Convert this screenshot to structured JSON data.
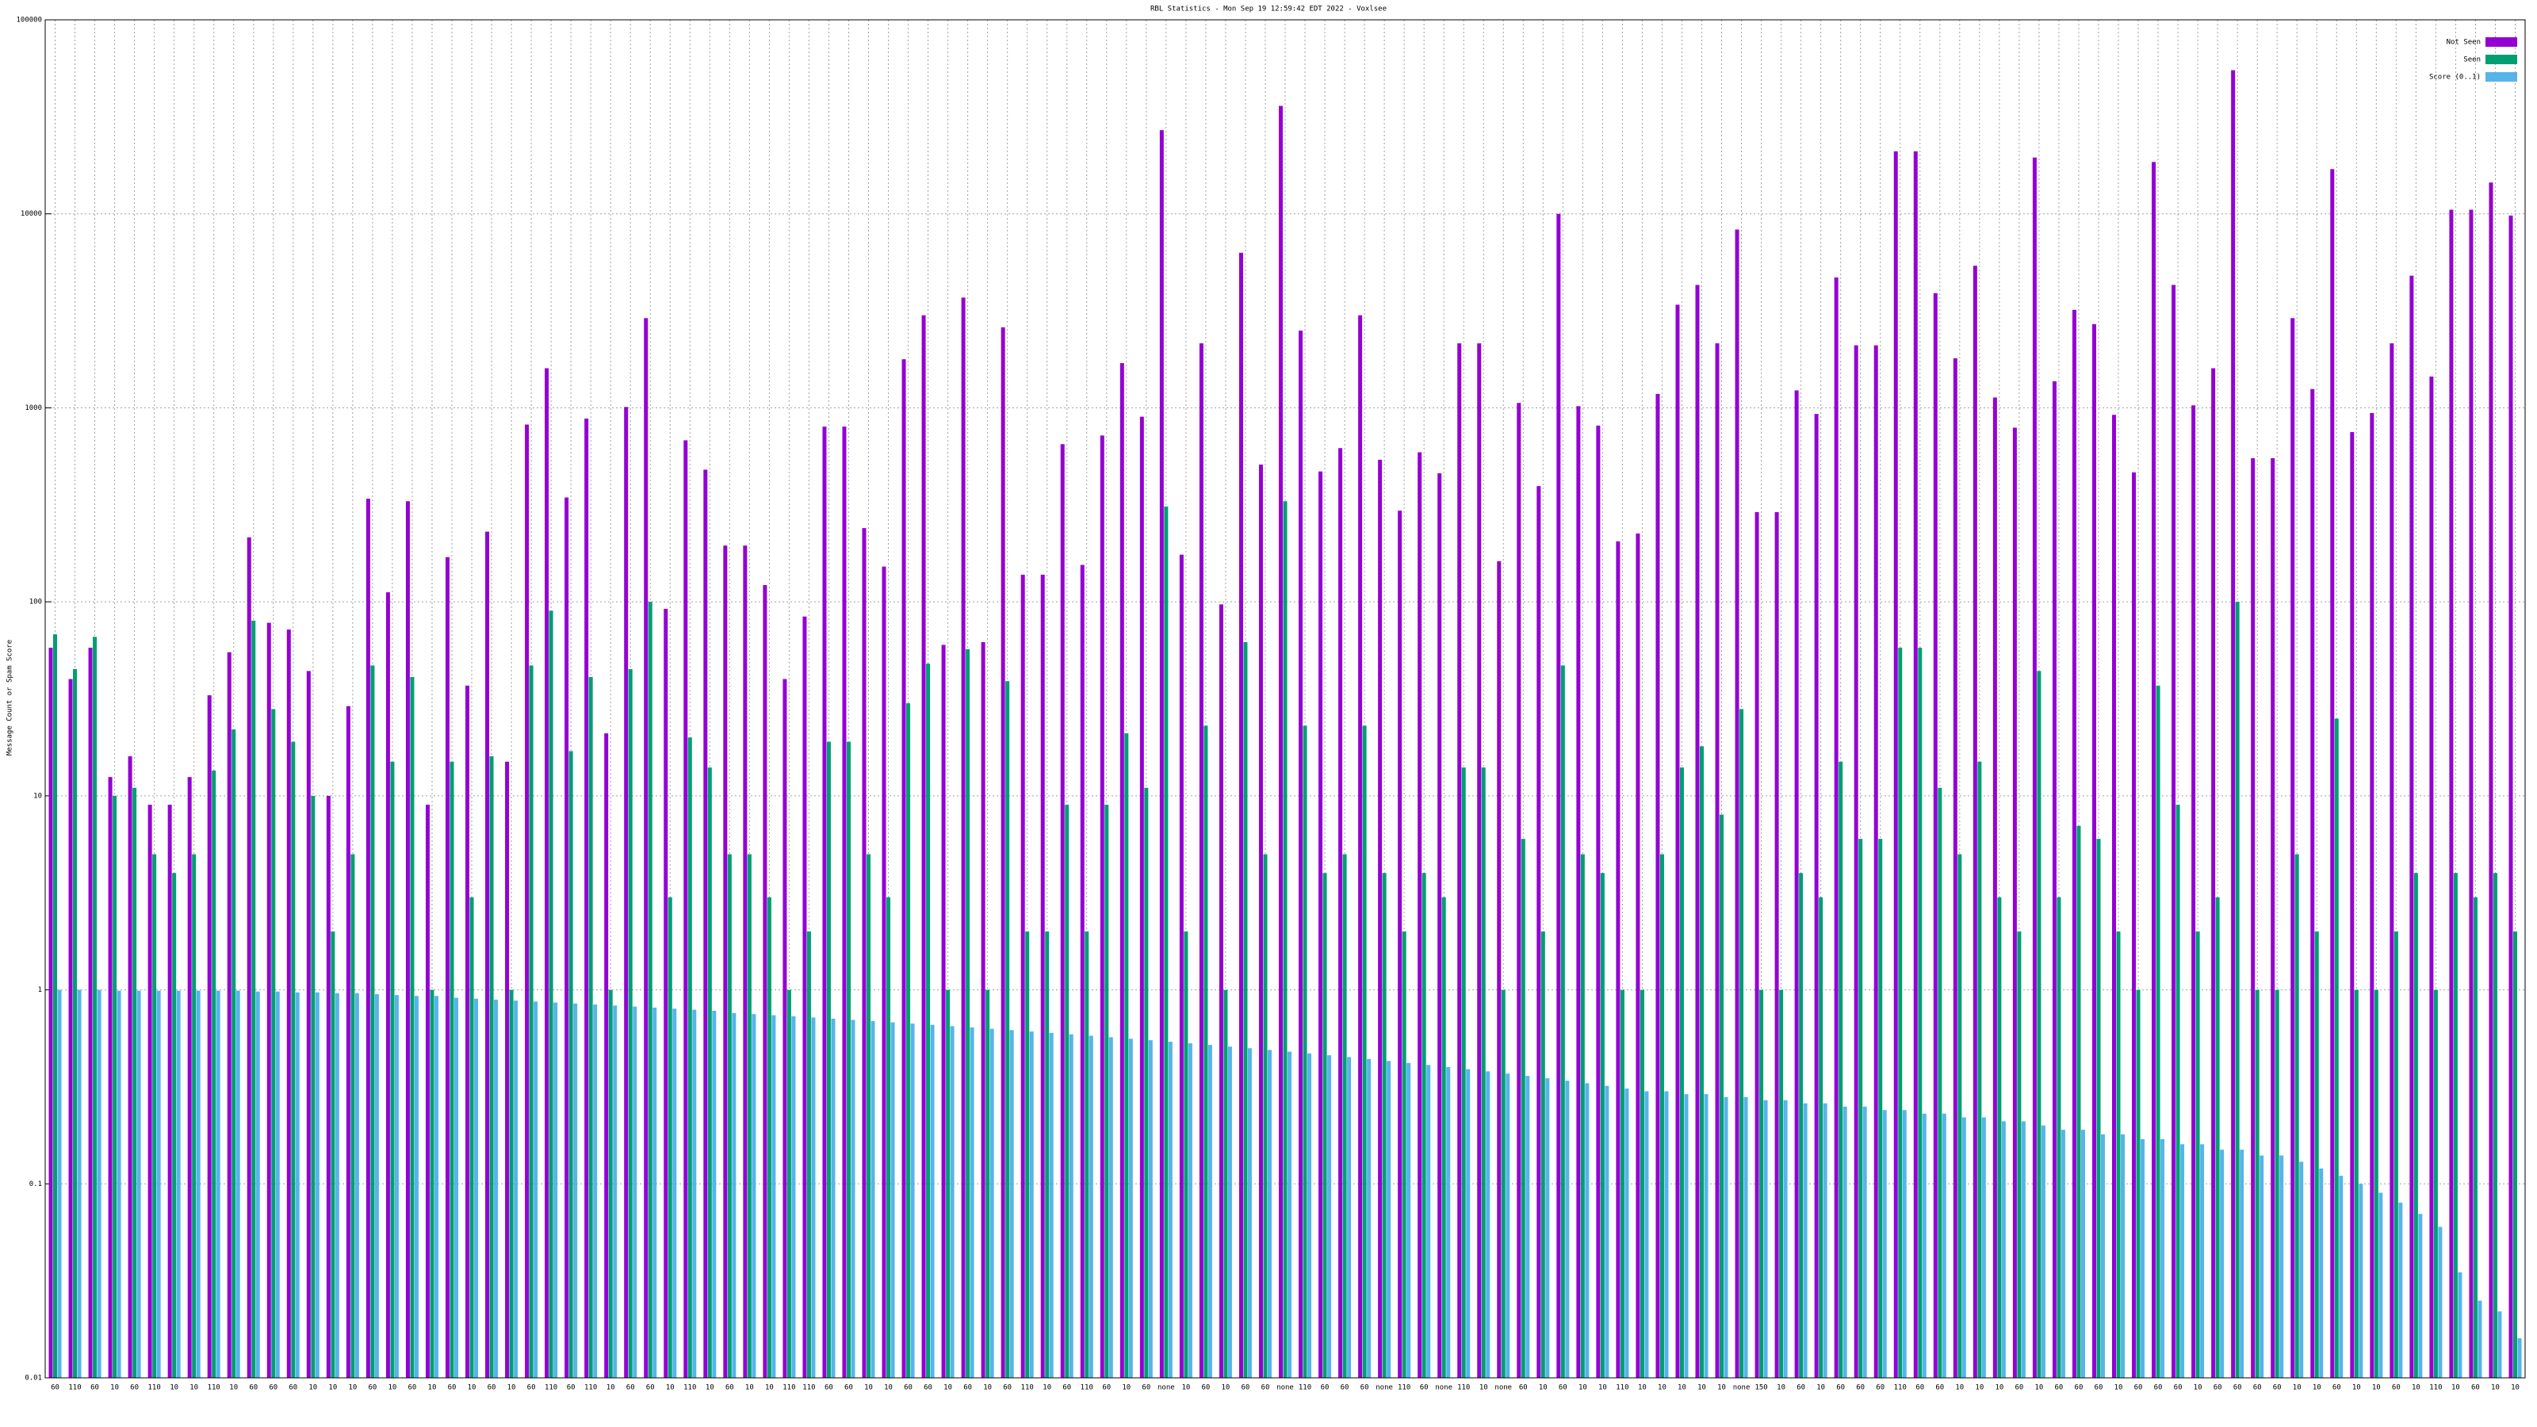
{
  "chart_data": {
    "type": "bar",
    "title": "RBL Statistics - Mon Sep 19 12:59:42 EDT 2022 - Voxlsee",
    "y_label": "Message Count or Spam Score",
    "log_scale": true,
    "grid": true,
    "legend": "top-right",
    "ylim": [
      0.01,
      100000
    ],
    "yticks": [
      0.01,
      0.1,
      1,
      10,
      100,
      1000,
      10000,
      100000
    ],
    "categories": [
      "60",
      "110",
      "60",
      "10",
      "60",
      "110",
      "10",
      "10",
      "110",
      "10",
      "60",
      "60",
      "60",
      "10",
      "10",
      "10",
      "60",
      "10",
      "60",
      "10",
      "60",
      "10",
      "60",
      "10",
      "60",
      "110",
      "60",
      "110",
      "10",
      "60",
      "60",
      "10",
      "110",
      "10",
      "60",
      "10",
      "10",
      "110",
      "110",
      "60",
      "60",
      "10",
      "10",
      "60",
      "60",
      "10",
      "60",
      "10",
      "60",
      "110",
      "10",
      "60",
      "110",
      "60",
      "10",
      "60",
      "none",
      "10",
      "60",
      "10",
      "60",
      "60",
      "none",
      "110",
      "60",
      "60",
      "60",
      "none",
      "110",
      "60",
      "none",
      "110",
      "10",
      "none",
      "60",
      "10",
      "60",
      "10",
      "10",
      "110",
      "10",
      "10",
      "10",
      "10",
      "10",
      "none",
      "150",
      "10",
      "60",
      "10",
      "60",
      "60",
      "60",
      "110",
      "60",
      "60",
      "10",
      "10",
      "10",
      "60",
      "10",
      "60",
      "60",
      "60",
      "10",
      "60",
      "60",
      "60",
      "10",
      "60",
      "60",
      "60",
      "60",
      "10",
      "10",
      "60",
      "10",
      "10",
      "60",
      "10",
      "110",
      "10",
      "60",
      "10",
      "10"
    ],
    "series": [
      {
        "name": "Not Seen",
        "color": "#9400d3",
        "values": [
          58,
          40,
          58,
          12.5,
          16,
          9,
          9,
          12.5,
          33,
          55,
          215,
          78,
          72,
          44,
          10,
          29,
          340,
          112,
          330,
          9,
          170,
          37,
          230,
          15,
          820,
          1600,
          345,
          880,
          21,
          1010,
          2900,
          92,
          680,
          480,
          195,
          195,
          122,
          40,
          84,
          800,
          800,
          240,
          152,
          1780,
          3000,
          60,
          3700,
          62,
          2600,
          138,
          138,
          650,
          155,
          720,
          1700,
          900,
          27000,
          175,
          2150,
          97,
          6300,
          510,
          36000,
          2500,
          470,
          620,
          3000,
          540,
          295,
          590,
          460,
          2150,
          2150,
          162,
          1060,
          395,
          10000,
          1020,
          810,
          205,
          225,
          1180,
          3400,
          4300,
          2150,
          8300,
          290,
          290,
          1230,
          930,
          4700,
          2100,
          2100,
          21000,
          21000,
          3900,
          1800,
          5400,
          1130,
          790,
          19500,
          1370,
          3200,
          2700,
          920,
          465,
          18500,
          4300,
          1030,
          1600,
          55000,
          550,
          550,
          2900,
          1250,
          17000,
          750,
          940,
          2150,
          4800,
          1450,
          10500,
          10500,
          14500,
          9800
        ]
      },
      {
        "name": "Seen",
        "color": "#009e73",
        "values": [
          68,
          45,
          66,
          10,
          11,
          5,
          4,
          5,
          13.5,
          22,
          80,
          28,
          19,
          10,
          2,
          5,
          47,
          15,
          41,
          1,
          15,
          3,
          16,
          1,
          47,
          90,
          17,
          41,
          1,
          45,
          100,
          3,
          20,
          14,
          5,
          5,
          3,
          1,
          2,
          19,
          19,
          5,
          3,
          30,
          48,
          1,
          57,
          1,
          39,
          2,
          2,
          9,
          2,
          9,
          21,
          11,
          310,
          2,
          23,
          1,
          62,
          5,
          330,
          23,
          4,
          5,
          23,
          4,
          2,
          4,
          3,
          14,
          14,
          1,
          6,
          2,
          47,
          5,
          4,
          1,
          1,
          5,
          14,
          18,
          8,
          28,
          1,
          1,
          4,
          3,
          15,
          6,
          6,
          58,
          58,
          11,
          5,
          15,
          3,
          2,
          44,
          3,
          7,
          6,
          2,
          1,
          37,
          9,
          2,
          3,
          100,
          1,
          1,
          5,
          2,
          25,
          1,
          1,
          2,
          4,
          1,
          4,
          3,
          4,
          2
        ]
      },
      {
        "name": "Score (0..1)",
        "color": "#56b4e9",
        "values": [
          1,
          1,
          1,
          0.99,
          0.99,
          0.99,
          0.99,
          0.99,
          0.99,
          0.99,
          0.98,
          0.98,
          0.97,
          0.97,
          0.96,
          0.96,
          0.95,
          0.94,
          0.93,
          0.93,
          0.91,
          0.9,
          0.89,
          0.88,
          0.87,
          0.86,
          0.85,
          0.84,
          0.83,
          0.82,
          0.81,
          0.8,
          0.79,
          0.78,
          0.76,
          0.75,
          0.74,
          0.73,
          0.72,
          0.71,
          0.7,
          0.69,
          0.68,
          0.67,
          0.66,
          0.65,
          0.64,
          0.63,
          0.62,
          0.61,
          0.6,
          0.59,
          0.58,
          0.57,
          0.56,
          0.55,
          0.54,
          0.53,
          0.52,
          0.51,
          0.5,
          0.49,
          0.48,
          0.47,
          0.46,
          0.45,
          0.44,
          0.43,
          0.42,
          0.41,
          0.4,
          0.39,
          0.38,
          0.37,
          0.36,
          0.35,
          0.34,
          0.33,
          0.32,
          0.31,
          0.3,
          0.3,
          0.29,
          0.29,
          0.28,
          0.28,
          0.27,
          0.27,
          0.26,
          0.26,
          0.25,
          0.25,
          0.24,
          0.24,
          0.23,
          0.23,
          0.22,
          0.22,
          0.21,
          0.21,
          0.2,
          0.19,
          0.19,
          0.18,
          0.18,
          0.17,
          0.17,
          0.16,
          0.16,
          0.15,
          0.15,
          0.14,
          0.14,
          0.13,
          0.12,
          0.11,
          0.1,
          0.09,
          0.08,
          0.07,
          0.06,
          0.035,
          0.025,
          0.022,
          0.016
        ]
      }
    ]
  }
}
